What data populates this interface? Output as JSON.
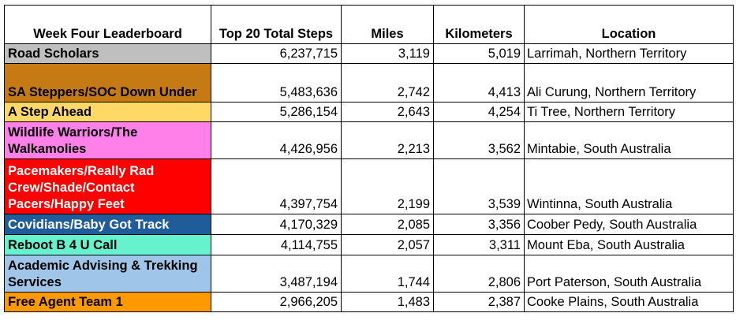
{
  "table": {
    "headers": {
      "title": "Week Four Leaderboard",
      "steps": "Top 20 Total Steps",
      "miles": "Miles",
      "km": "Kilometers",
      "location": "Location"
    },
    "rows": [
      {
        "team": "Road Scholars",
        "steps": "6,237,715",
        "miles": "3,119",
        "km": "5,019",
        "location": "Larrimah, Northern Territory",
        "color": "#bfbfbf",
        "text_color": "#000000"
      },
      {
        "team": "SA Steppers/SOC Down Under",
        "steps": "5,483,636",
        "miles": "2,742",
        "km": "4,413",
        "location": "Ali Curung, Northern Territory",
        "color": "#c57a14",
        "text_color": "#000000"
      },
      {
        "team": "A Step Ahead",
        "steps": "5,286,154",
        "miles": "2,643",
        "km": "4,254",
        "location": "Ti Tree, Northern Territory",
        "color": "#ffd966",
        "text_color": "#000000"
      },
      {
        "team": "Wildlife Warriors/The Walkamolies",
        "steps": "4,426,956",
        "miles": "2,213",
        "km": "3,562",
        "location": "Mintabie, South Australia",
        "color": "#ff80e8",
        "text_color": "#000000"
      },
      {
        "team": "Pacemakers/Really Rad Crew/Shade/Contact Pacers/Happy Feet",
        "steps": "4,397,754",
        "miles": "2,199",
        "km": "3,539",
        "location": "Wintinna, South Australia",
        "color": "#ff0000",
        "text_color": "#ffffff"
      },
      {
        "team": "Covidians/Baby Got Track",
        "steps": "4,170,329",
        "miles": "2,085",
        "km": "3,356",
        "location": "Coober Pedy, South Australia",
        "color": "#1f5c99",
        "text_color": "#ffffff"
      },
      {
        "team": "Reboot B 4 U Call",
        "steps": "4,114,755",
        "miles": "2,057",
        "km": "3,311",
        "location": "Mount Eba, South Australia",
        "color": "#66f2cc",
        "text_color": "#000000"
      },
      {
        "team": "Academic Advising & Trekking Services",
        "steps": "3,487,194",
        "miles": "1,744",
        "km": "2,806",
        "location": "Port Paterson, South Australia",
        "color": "#9fc5e8",
        "text_color": "#000000"
      },
      {
        "team": "Free Agent Team 1",
        "steps": "2,966,205",
        "miles": "1,483",
        "km": "2,387",
        "location": "Cooke Plains, South Australia",
        "color": "#ff9900",
        "text_color": "#000000"
      }
    ]
  }
}
